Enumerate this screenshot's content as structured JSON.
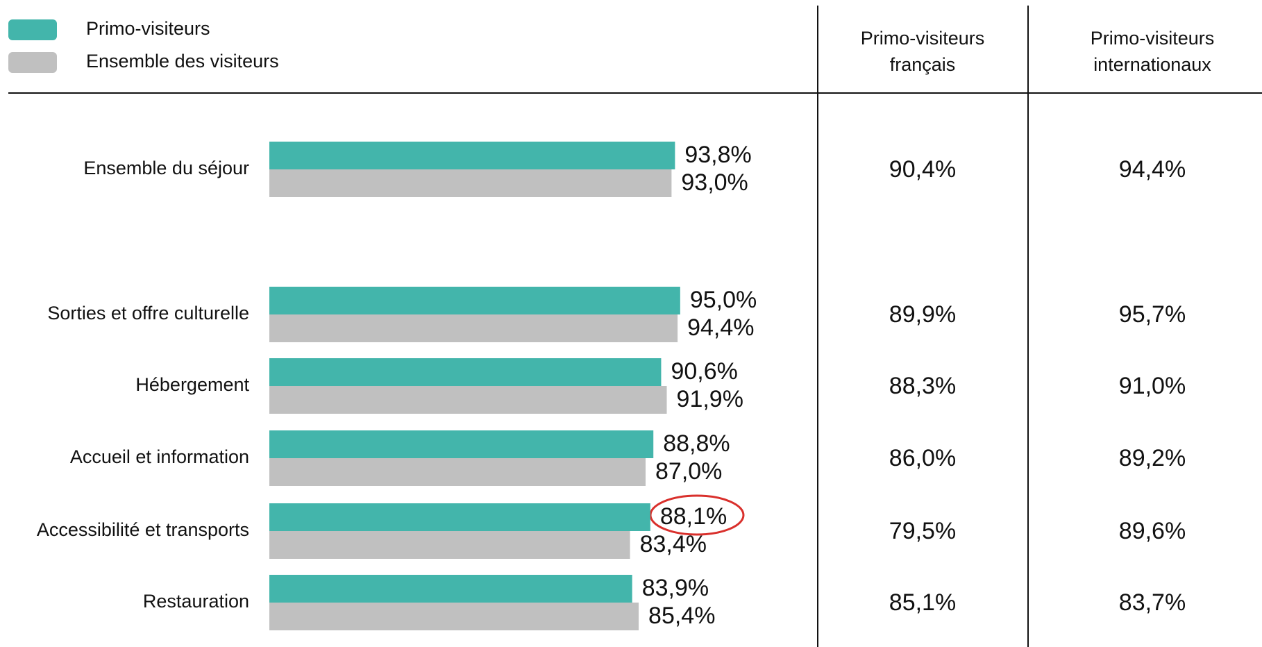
{
  "chart_data": {
    "type": "hbar",
    "categories": [
      "Ensemble du séjour",
      "Sorties et offre culturelle",
      "Hébergement",
      "Accueil et information",
      "Accessibilité et transports",
      "Restauration"
    ],
    "series": [
      {
        "name": "Primo-visiteurs",
        "color": "#43b5ab",
        "values": [
          93.8,
          95.0,
          90.6,
          88.8,
          88.1,
          83.9
        ],
        "value_labels": [
          "93,8%",
          "95,0%",
          "90,6%",
          "88,8%",
          "88,1%",
          "83,9%"
        ]
      },
      {
        "name": "Ensemble des visiteurs",
        "color": "#c0c0c0",
        "values": [
          93.0,
          94.4,
          91.9,
          87.0,
          83.4,
          85.4
        ],
        "value_labels": [
          "93,0%",
          "94,4%",
          "91,9%",
          "87,0%",
          "83,4%",
          "85,4%"
        ]
      }
    ],
    "xlim": [
      0,
      100
    ],
    "columns": [
      {
        "name": "Primo-visiteurs français",
        "values": [
          "90,4%",
          "89,9%",
          "88,3%",
          "86,0%",
          "79,5%",
          "85,1%"
        ]
      },
      {
        "name": "Primo-visiteurs internationaux",
        "values": [
          "94,4%",
          "95,7%",
          "91,0%",
          "89,2%",
          "89,6%",
          "83,7%"
        ]
      }
    ]
  }
}
